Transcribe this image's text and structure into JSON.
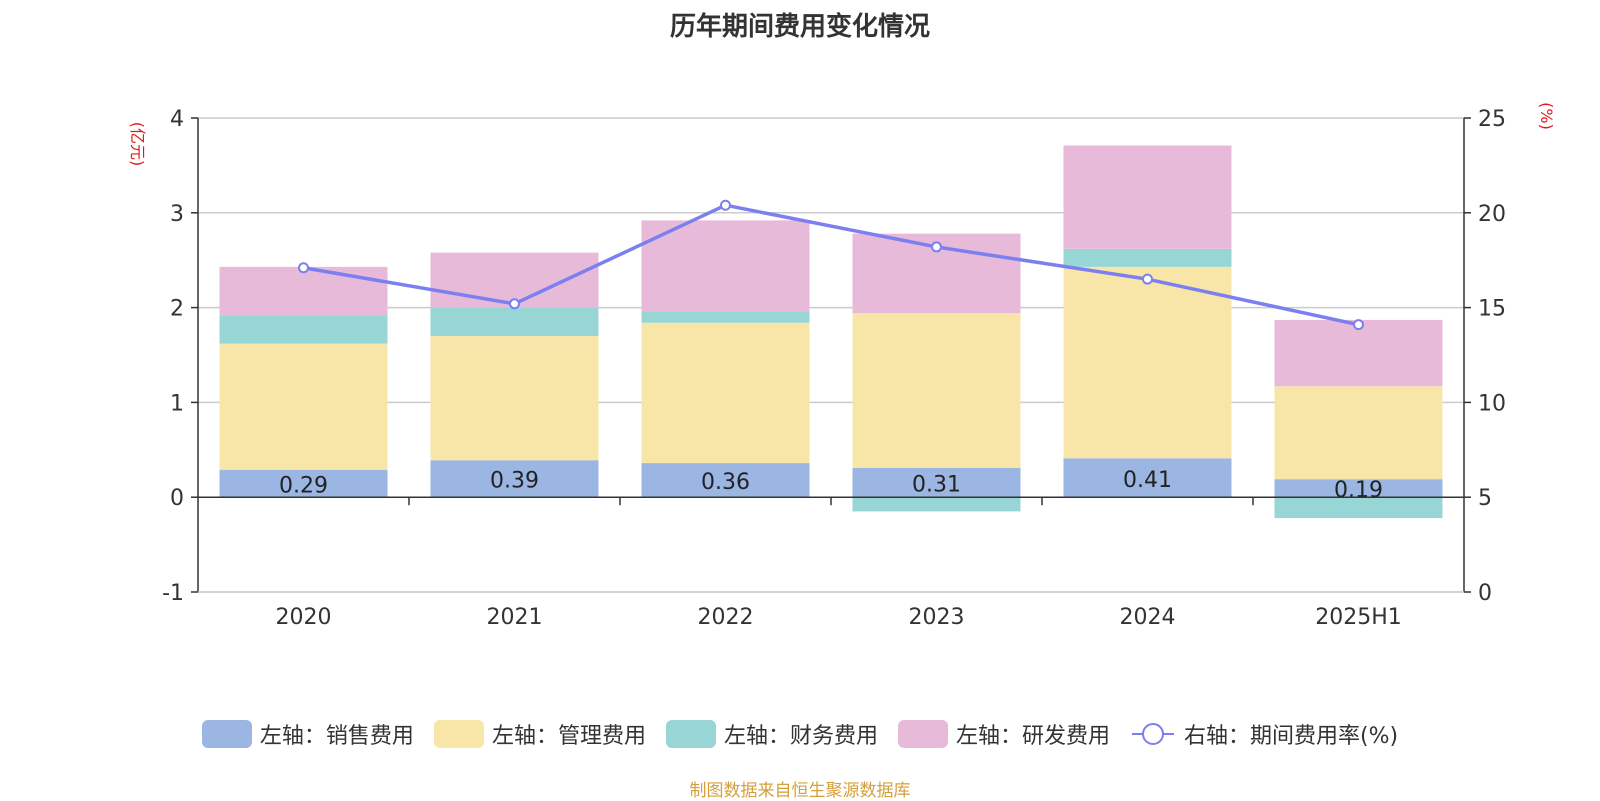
{
  "chart_data": {
    "type": "bar",
    "stacked": true,
    "title": "历年期间费用变化情况",
    "categories": [
      "2020",
      "2021",
      "2022",
      "2023",
      "2024",
      "2025H1"
    ],
    "series": [
      {
        "name": "左轴：销售费用",
        "axis": "left",
        "color": "#9bb6e3",
        "values": [
          0.29,
          0.39,
          0.36,
          0.31,
          0.41,
          0.19
        ],
        "labels": [
          "0.29",
          "0.39",
          "0.36",
          "0.31",
          "0.41",
          "0.19"
        ]
      },
      {
        "name": "左轴：管理费用",
        "axis": "left",
        "color": "#f8e6a8",
        "values": [
          1.33,
          1.31,
          1.48,
          1.63,
          2.02,
          0.98
        ]
      },
      {
        "name": "左轴：财务费用",
        "axis": "left",
        "color": "#98d5d5",
        "values": [
          0.3,
          0.3,
          0.12,
          -0.15,
          0.19,
          -0.22
        ]
      },
      {
        "name": "左轴：研发费用",
        "axis": "left",
        "color": "#e8bada",
        "values": [
          0.51,
          0.58,
          0.96,
          0.84,
          1.09,
          0.7
        ]
      }
    ],
    "line": {
      "name": "右轴：期间费用率(%)",
      "axis": "right",
      "color": "#7b7ff0",
      "values": [
        17.1,
        15.2,
        20.4,
        18.2,
        16.5,
        14.1
      ]
    },
    "left_axis": {
      "label": "(亿元)",
      "min": -1,
      "max": 4,
      "ticks": [
        "-1",
        "0",
        "1",
        "2",
        "3",
        "4"
      ]
    },
    "right_axis": {
      "label": "(%)",
      "min": 0,
      "max": 25,
      "ticks": [
        "0",
        "5",
        "10",
        "15",
        "20",
        "25"
      ]
    },
    "grid": true,
    "legend_position": "bottom"
  },
  "source_note": "制图数据来自恒生聚源数据库"
}
